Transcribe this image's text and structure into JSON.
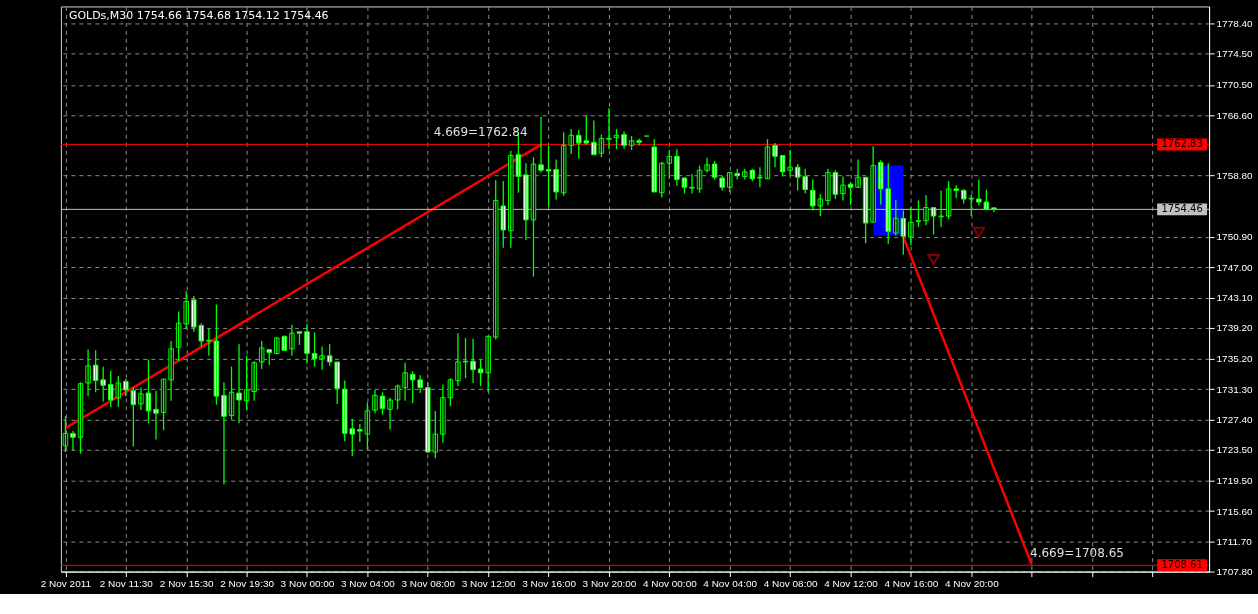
{
  "chart_data": {
    "type": "candlestick",
    "title": "GOLDs,M30  1754.66 1754.68 1754.12 1754.46",
    "color": "#00ff00",
    "categories": [
      "2 Nov 2011",
      null,
      null,
      null,
      null,
      null,
      null,
      null,
      "2 Nov 11:30",
      null,
      null,
      null,
      null,
      null,
      null,
      null,
      "2 Nov 15:30",
      null,
      null,
      null,
      null,
      null,
      null,
      null,
      "2 Nov 19:30",
      null,
      null,
      null,
      null,
      null,
      null,
      null,
      "3 Nov 00:00",
      null,
      null,
      null,
      null,
      null,
      null,
      null,
      "3 Nov 04:00",
      null,
      null,
      null,
      null,
      null,
      null,
      null,
      "3 Nov 08:00",
      null,
      null,
      null,
      null,
      null,
      null,
      null,
      "3 Nov 12:00",
      null,
      null,
      null,
      null,
      null,
      null,
      null,
      "3 Nov 16:00",
      null,
      null,
      null,
      null,
      null,
      null,
      null,
      "3 Nov 20:00",
      null,
      null,
      null,
      null,
      null,
      null,
      null,
      "4 Nov 00:00",
      null,
      null,
      null,
      null,
      null,
      null,
      null,
      "4 Nov 04:00",
      null,
      null,
      null,
      null,
      null,
      null,
      null,
      "4 Nov 08:00",
      null,
      null,
      null,
      null,
      null,
      null,
      null,
      "4 Nov 12:00",
      null,
      null,
      null,
      null,
      null,
      null,
      null,
      "4 Nov 16:00",
      null,
      null,
      null,
      null,
      null,
      null,
      null,
      "4 Nov 20:00",
      null,
      null,
      null,
      null,
      null,
      null,
      null,
      null,
      null,
      null,
      null,
      null,
      null,
      null,
      null,
      null,
      null,
      null,
      null,
      null,
      null,
      null,
      null,
      null,
      null,
      null,
      null,
      null,
      null,
      null,
      null
    ],
    "ohlc": [
      [
        1724.0,
        1727.8,
        1723.2,
        1725.6
      ],
      [
        1725.6,
        1725.9,
        1723.4,
        1725.1
      ],
      [
        1725.1,
        1732.2,
        1723.0,
        1732.0
      ],
      [
        1732.1,
        1736.4,
        1730.4,
        1734.3
      ],
      [
        1734.4,
        1736.3,
        1730.9,
        1732.4
      ],
      [
        1732.5,
        1734.2,
        1729.7,
        1731.8
      ],
      [
        1731.9,
        1733.7,
        1729.0,
        1729.9
      ],
      [
        1730.2,
        1733.0,
        1729.0,
        1732.1
      ],
      [
        1732.3,
        1732.6,
        1730.4,
        1731.2
      ],
      [
        1731.1,
        1731.5,
        1723.9,
        1729.3
      ],
      [
        1729.4,
        1731.5,
        1728.6,
        1730.7
      ],
      [
        1730.8,
        1735.1,
        1726.9,
        1728.5
      ],
      [
        1728.7,
        1731.1,
        1724.8,
        1728.2
      ],
      [
        1728.3,
        1732.6,
        1726.0,
        1732.6
      ],
      [
        1732.5,
        1737.5,
        1729.8,
        1736.5
      ],
      [
        1736.7,
        1741.3,
        1734.9,
        1739.8
      ],
      [
        1739.7,
        1743.9,
        1739.1,
        1742.6
      ],
      [
        1742.8,
        1743.3,
        1738.7,
        1739.3
      ],
      [
        1739.5,
        1739.8,
        1736.8,
        1737.5
      ],
      [
        1737.6,
        1739.1,
        1735.6,
        1737.5
      ],
      [
        1737.5,
        1742.2,
        1729.3,
        1730.4
      ],
      [
        1730.5,
        1732.2,
        1719.0,
        1727.8
      ],
      [
        1727.9,
        1734.2,
        1727.4,
        1730.9
      ],
      [
        1730.8,
        1737.1,
        1726.9,
        1729.9
      ],
      [
        1729.8,
        1735.6,
        1728.6,
        1731.2
      ],
      [
        1731.0,
        1734.9,
        1729.8,
        1734.7
      ],
      [
        1734.8,
        1737.5,
        1733.9,
        1736.6
      ],
      [
        1736.4,
        1736.4,
        1734.4,
        1736.0
      ],
      [
        1735.9,
        1738.0,
        1735.8,
        1737.9
      ],
      [
        1738.1,
        1738.2,
        1736.2,
        1736.3
      ],
      [
        1736.5,
        1739.6,
        1735.6,
        1738.5
      ],
      [
        1738.7,
        1738.7,
        1737.0,
        1738.5
      ],
      [
        1738.7,
        1739.7,
        1734.6,
        1735.9
      ],
      [
        1735.9,
        1738.6,
        1734.2,
        1735.2
      ],
      [
        1735.2,
        1736.8,
        1733.8,
        1735.6
      ],
      [
        1735.6,
        1737.1,
        1734.3,
        1734.8
      ],
      [
        1734.8,
        1734.8,
        1729.4,
        1731.4
      ],
      [
        1731.3,
        1732.4,
        1724.6,
        1725.6
      ],
      [
        1726.2,
        1727.5,
        1722.7,
        1725.5
      ],
      [
        1726.1,
        1726.8,
        1724.5,
        1725.9
      ],
      [
        1725.5,
        1729.6,
        1723.5,
        1728.5
      ],
      [
        1728.6,
        1731.2,
        1728.2,
        1730.5
      ],
      [
        1730.4,
        1730.9,
        1728.0,
        1728.8
      ],
      [
        1728.7,
        1730.2,
        1726.1,
        1729.9
      ],
      [
        1729.9,
        1731.9,
        1728.7,
        1731.7
      ],
      [
        1731.5,
        1734.7,
        1729.8,
        1733.4
      ],
      [
        1733.2,
        1733.6,
        1729.5,
        1732.5
      ],
      [
        1732.5,
        1733.1,
        1730.8,
        1731.5
      ],
      [
        1731.5,
        1732.2,
        1723.1,
        1723.2
      ],
      [
        1723.2,
        1728.5,
        1722.4,
        1725.5
      ],
      [
        1725.5,
        1731.9,
        1724.4,
        1730.2
      ],
      [
        1730.2,
        1732.7,
        1729.1,
        1732.5
      ],
      [
        1732.4,
        1738.5,
        1731.7,
        1734.8
      ],
      [
        1734.9,
        1737.9,
        1732.7,
        1734.8
      ],
      [
        1734.9,
        1737.8,
        1732.1,
        1733.8
      ],
      [
        1733.9,
        1735.1,
        1731.7,
        1733.4
      ],
      [
        1733.4,
        1738.2,
        1730.9,
        1738.1
      ],
      [
        1738.0,
        1758.2,
        1737.7,
        1755.6
      ],
      [
        1754.9,
        1758.1,
        1749.5,
        1751.8
      ],
      [
        1751.7,
        1762.0,
        1749.5,
        1761.4
      ],
      [
        1761.5,
        1764.2,
        1756.6,
        1758.7
      ],
      [
        1758.9,
        1760.4,
        1750.5,
        1753.1
      ],
      [
        1753.1,
        1761.2,
        1745.8,
        1760.3
      ],
      [
        1760.2,
        1766.4,
        1759.2,
        1759.5
      ],
      [
        1759.6,
        1762.6,
        1754.8,
        1759.4
      ],
      [
        1759.6,
        1760.9,
        1755.7,
        1756.7
      ],
      [
        1756.6,
        1764.4,
        1756.2,
        1762.7
      ],
      [
        1762.7,
        1764.8,
        1761.6,
        1764.0
      ],
      [
        1764.0,
        1764.7,
        1761.0,
        1763.0
      ],
      [
        1763.3,
        1766.6,
        1762.8,
        1763.0
      ],
      [
        1763.1,
        1765.9,
        1761.5,
        1761.5
      ],
      [
        1761.7,
        1764.1,
        1761.2,
        1763.6
      ],
      [
        1763.6,
        1767.5,
        1762.2,
        1763.5
      ],
      [
        1763.7,
        1764.8,
        1762.2,
        1764.0
      ],
      [
        1764.1,
        1764.5,
        1762.3,
        1762.7
      ],
      [
        1762.7,
        1763.9,
        1762.1,
        1763.3
      ],
      [
        1763.3,
        1763.6,
        1762.7,
        1763.1
      ],
      [
        1763.9,
        1763.9,
        1763.9,
        1763.9
      ],
      [
        1762.5,
        1763.5,
        1756.7,
        1756.7
      ],
      [
        1756.6,
        1760.6,
        1756.0,
        1760.4
      ],
      [
        1760.4,
        1762.1,
        1758.4,
        1761.3
      ],
      [
        1761.3,
        1762.2,
        1757.5,
        1758.3
      ],
      [
        1758.5,
        1758.6,
        1756.5,
        1757.3
      ],
      [
        1757.3,
        1759.0,
        1756.5,
        1757.2
      ],
      [
        1757.1,
        1760.1,
        1756.6,
        1759.5
      ],
      [
        1759.5,
        1761.1,
        1759.2,
        1760.2
      ],
      [
        1760.3,
        1760.7,
        1758.3,
        1758.6
      ],
      [
        1758.5,
        1758.8,
        1756.9,
        1757.3
      ],
      [
        1757.3,
        1759.2,
        1756.7,
        1759.2
      ],
      [
        1759.1,
        1759.7,
        1758.3,
        1758.8
      ],
      [
        1758.7,
        1759.7,
        1758.3,
        1759.3
      ],
      [
        1759.5,
        1759.7,
        1758.1,
        1758.4
      ],
      [
        1758.6,
        1759.9,
        1757.3,
        1758.5
      ],
      [
        1758.4,
        1763.5,
        1758.4,
        1762.5
      ],
      [
        1762.7,
        1763.0,
        1759.9,
        1761.3
      ],
      [
        1761.4,
        1761.4,
        1758.7,
        1759.3
      ],
      [
        1759.5,
        1762.1,
        1758.8,
        1759.9
      ],
      [
        1759.9,
        1760.3,
        1756.9,
        1758.6
      ],
      [
        1758.7,
        1759.7,
        1756.5,
        1757.0
      ],
      [
        1756.9,
        1758.3,
        1754.3,
        1754.9
      ],
      [
        1754.9,
        1756.4,
        1753.6,
        1755.8
      ],
      [
        1755.6,
        1759.7,
        1755.0,
        1759.2
      ],
      [
        1759.2,
        1759.5,
        1755.8,
        1756.4
      ],
      [
        1756.5,
        1758.7,
        1755.6,
        1757.6
      ],
      [
        1757.7,
        1758.0,
        1755.0,
        1757.3
      ],
      [
        1757.3,
        1760.9,
        1757.2,
        1758.6
      ],
      [
        1758.6,
        1758.6,
        1750.1,
        1752.7
      ],
      [
        1752.8,
        1762.6,
        1752.8,
        1760.1
      ],
      [
        1760.5,
        1760.8,
        1755.1,
        1757.1
      ],
      [
        1757.1,
        1760.4,
        1750.0,
        1751.6
      ],
      [
        1751.4,
        1755.7,
        1751.1,
        1753.3
      ],
      [
        1753.3,
        1754.3,
        1748.6,
        1751.0
      ],
      [
        1750.9,
        1754.8,
        1749.8,
        1752.8
      ],
      [
        1752.9,
        1755.6,
        1752.2,
        1753.0
      ],
      [
        1753.0,
        1756.3,
        1752.4,
        1754.7
      ],
      [
        1754.7,
        1754.7,
        1751.2,
        1753.6
      ],
      [
        1753.5,
        1756.9,
        1752.2,
        1753.6
      ],
      [
        1753.6,
        1758.1,
        1753.2,
        1757.1
      ],
      [
        1757.1,
        1757.6,
        1755.9,
        1756.9
      ],
      [
        1756.9,
        1757.1,
        1755.2,
        1755.8
      ],
      [
        1755.9,
        1756.3,
        1753.6,
        1755.8
      ],
      [
        1755.8,
        1758.3,
        1755.0,
        1755.4
      ],
      [
        1755.4,
        1757.0,
        1754.5,
        1754.5
      ],
      [
        1754.66,
        1754.68,
        1754.12,
        1754.46
      ],
      null,
      null,
      null,
      null,
      null,
      null,
      null,
      null,
      null,
      null,
      null,
      null,
      null,
      null,
      null,
      null,
      null,
      null,
      null,
      null,
      null,
      null,
      null,
      null,
      null,
      null,
      null,
      null
    ],
    "series": [
      {
        "type": "line",
        "color": "#0000ff",
        "values": [
          null,
          null,
          null,
          null,
          null,
          null,
          null,
          null,
          null,
          null,
          null,
          null,
          null,
          null,
          null,
          null,
          null,
          null,
          null,
          null,
          null,
          null,
          null,
          null,
          null,
          null,
          null,
          null,
          null,
          null,
          null,
          null,
          null,
          null,
          null,
          null,
          null,
          null,
          null,
          null,
          null,
          null,
          null,
          null,
          null,
          null,
          null,
          null,
          null,
          null,
          null,
          null,
          null,
          null,
          null,
          null,
          null,
          null,
          null,
          null,
          null,
          null,
          null,
          null,
          null,
          null,
          null,
          null,
          null,
          null,
          null,
          null,
          null,
          null,
          null,
          null,
          null,
          null,
          null,
          null,
          null,
          null,
          null,
          null,
          null,
          null,
          null,
          null,
          null,
          null,
          null,
          null,
          null,
          null,
          null,
          null,
          null,
          null,
          null,
          null,
          null,
          null,
          null,
          null,
          null,
          null,
          null,
          null,
          null,
          null,
          null,
          null,
          null,
          null,
          null,
          null,
          null,
          null,
          null,
          null,
          null,
          null,
          null,
          null,
          null,
          null,
          null,
          null,
          null,
          null,
          null,
          null,
          null,
          null,
          null,
          null,
          null,
          null,
          null,
          null,
          null,
          null,
          null,
          null,
          null,
          null,
          null,
          null,
          null,
          null,
          null,
          null
        ],
        "upper": [
          null,
          null,
          null,
          null,
          null,
          null,
          null,
          null,
          null,
          null,
          null,
          null,
          null,
          null,
          null,
          null,
          null,
          null,
          null,
          null,
          null,
          null,
          null,
          null,
          null,
          null,
          null,
          null,
          null,
          null,
          null,
          null,
          null,
          null,
          null,
          null,
          null,
          null,
          null,
          null,
          null,
          null,
          null,
          null,
          null,
          null,
          null,
          null,
          null,
          null,
          null,
          null,
          null,
          null,
          null,
          null,
          null,
          null,
          null,
          null,
          null,
          null,
          null,
          null,
          null,
          null,
          null,
          null,
          null,
          null,
          null,
          null,
          null,
          null,
          null,
          null,
          null,
          null,
          null,
          null,
          null,
          null,
          null,
          null,
          null,
          null,
          null,
          null,
          null,
          null,
          null,
          null,
          null,
          null,
          null,
          null,
          null,
          null,
          null,
          null,
          null,
          null,
          null,
          null,
          null,
          null,
          null,
          1760.1,
          1760.1,
          1760.1,
          1760.1,
          1760.1,
          null,
          null,
          null,
          null,
          null,
          null,
          null,
          null,
          null,
          null,
          null,
          null,
          null,
          null,
          null,
          null,
          null,
          null,
          null,
          null,
          null,
          null,
          null,
          null,
          null,
          null,
          null,
          null,
          null,
          null,
          null,
          null,
          null,
          null,
          null,
          null,
          null,
          null,
          null,
          null
        ],
        "lower": [
          null,
          null,
          null,
          null,
          null,
          null,
          null,
          null,
          null,
          null,
          null,
          null,
          null,
          null,
          null,
          null,
          null,
          null,
          null,
          null,
          null,
          null,
          null,
          null,
          null,
          null,
          null,
          null,
          null,
          null,
          null,
          null,
          null,
          null,
          null,
          null,
          null,
          null,
          null,
          null,
          null,
          null,
          null,
          null,
          null,
          null,
          null,
          null,
          null,
          null,
          null,
          null,
          null,
          null,
          null,
          null,
          null,
          null,
          null,
          null,
          null,
          null,
          null,
          null,
          null,
          null,
          null,
          null,
          null,
          null,
          null,
          null,
          null,
          null,
          null,
          null,
          null,
          null,
          null,
          null,
          null,
          null,
          null,
          null,
          null,
          null,
          null,
          null,
          null,
          null,
          null,
          null,
          null,
          null,
          null,
          null,
          null,
          null,
          null,
          null,
          null,
          null,
          null,
          null,
          null,
          null,
          null,
          1751.1,
          1751.1,
          1751.1,
          1751.1,
          1751.1,
          null,
          null,
          null,
          null,
          null,
          null,
          null,
          null,
          null,
          null,
          null,
          null,
          null,
          null,
          null,
          null,
          null,
          null,
          null,
          null,
          null,
          null,
          null,
          null,
          null,
          null,
          null,
          null,
          null,
          null,
          null,
          null,
          null,
          null,
          null,
          null,
          null,
          null,
          null,
          null
        ]
      },
      {
        "type": "line",
        "color": "#ff0000",
        "values": [
          1726.3,
          null,
          null,
          null,
          null,
          null,
          null,
          null,
          null,
          null,
          null,
          null,
          null,
          null,
          null,
          null,
          null,
          null,
          null,
          null,
          null,
          null,
          null,
          null,
          null,
          null,
          null,
          null,
          null,
          null,
          null,
          null,
          null,
          null,
          null,
          null,
          null,
          null,
          null,
          null,
          null,
          null,
          null,
          null,
          null,
          null,
          null,
          null,
          null,
          null,
          null,
          null,
          null,
          null,
          null,
          null,
          null,
          null,
          null,
          null,
          null,
          null,
          null,
          1762.8,
          null,
          null,
          null,
          null,
          null,
          null,
          null,
          null,
          null,
          null,
          null,
          null,
          null,
          null,
          null,
          null,
          null,
          null,
          null,
          null,
          null,
          null,
          null,
          null,
          null,
          null,
          null,
          null,
          null,
          null,
          null,
          null,
          null,
          null,
          null,
          null,
          null,
          null,
          null,
          null,
          null,
          null,
          null,
          null,
          null,
          null,
          null,
          null,
          null,
          null,
          null,
          null,
          null,
          null,
          null,
          null,
          null,
          null,
          null,
          null,
          null,
          null,
          null,
          null,
          null,
          null,
          null,
          null,
          null,
          null,
          null,
          null,
          null,
          null,
          null,
          null,
          null,
          null,
          null,
          null,
          null,
          null,
          null,
          null,
          null,
          null,
          null,
          null
        ]
      },
      {
        "type": "line",
        "color": "#ff0000",
        "values": [
          null,
          null,
          null,
          null,
          null,
          null,
          null,
          null,
          null,
          null,
          null,
          null,
          null,
          null,
          null,
          null,
          null,
          null,
          null,
          null,
          null,
          null,
          null,
          null,
          null,
          null,
          null,
          null,
          null,
          null,
          null,
          null,
          null,
          null,
          null,
          null,
          null,
          null,
          null,
          null,
          null,
          null,
          null,
          null,
          null,
          null,
          null,
          null,
          null,
          null,
          null,
          null,
          null,
          null,
          null,
          null,
          null,
          null,
          null,
          null,
          null,
          null,
          null,
          null,
          null,
          null,
          null,
          null,
          null,
          null,
          null,
          null,
          null,
          null,
          null,
          null,
          null,
          null,
          null,
          null,
          null,
          null,
          null,
          null,
          null,
          null,
          null,
          null,
          null,
          null,
          null,
          null,
          null,
          null,
          null,
          null,
          null,
          null,
          null,
          null,
          null,
          null,
          null,
          null,
          null,
          null,
          null,
          null,
          null,
          null,
          null,
          1750.9,
          null,
          null,
          null,
          null,
          null,
          null,
          null,
          null,
          null,
          null,
          null,
          null,
          null,
          null,
          null,
          null,
          1708.7,
          null,
          null,
          null,
          null,
          null,
          null,
          null,
          null,
          null,
          null,
          null,
          null,
          null,
          null,
          null,
          null,
          null,
          null,
          null,
          null,
          null,
          null,
          null
        ]
      },
      {
        "type": "scatter",
        "color": "#c00000",
        "marker": "triangle",
        "values": [
          null,
          null,
          null,
          null,
          null,
          null,
          null,
          null,
          null,
          null,
          null,
          null,
          null,
          null,
          null,
          null,
          null,
          null,
          null,
          null,
          null,
          null,
          null,
          null,
          null,
          null,
          null,
          null,
          null,
          null,
          null,
          null,
          null,
          null,
          null,
          null,
          null,
          null,
          null,
          null,
          null,
          null,
          null,
          null,
          null,
          null,
          null,
          null,
          null,
          null,
          null,
          null,
          null,
          null,
          null,
          null,
          null,
          null,
          null,
          null,
          null,
          null,
          null,
          null,
          null,
          null,
          null,
          null,
          null,
          null,
          null,
          null,
          null,
          null,
          null,
          null,
          null,
          null,
          null,
          null,
          null,
          null,
          null,
          null,
          null,
          null,
          null,
          null,
          null,
          null,
          null,
          null,
          null,
          null,
          null,
          null,
          null,
          null,
          null,
          null,
          null,
          null,
          null,
          null,
          null,
          null,
          null,
          null,
          null,
          null,
          null,
          null,
          null,
          null,
          null,
          1748.0,
          null,
          null,
          null,
          null,
          null,
          1751.5,
          null,
          null,
          null,
          null,
          null,
          null,
          null,
          null,
          null,
          null,
          null,
          null,
          null,
          null,
          null,
          null,
          null,
          null,
          null,
          null,
          null,
          null,
          null,
          null,
          null,
          null,
          null,
          null,
          null,
          null
        ]
      }
    ],
    "ylim": [
      1707.8,
      1780.6
    ],
    "yticks": [
      {
        "value": 1778.4,
        "label": "1778.40"
      },
      {
        "value": 1774.5,
        "label": "1774.50"
      },
      {
        "value": 1770.5,
        "label": "1770.50"
      },
      {
        "value": 1766.6,
        "label": "1766.60"
      },
      {
        "value": 1758.8,
        "label": "1758.80"
      },
      {
        "value": 1750.9,
        "label": "1750.90"
      },
      {
        "value": 1747.0,
        "label": "1747.00"
      },
      {
        "value": 1743.1,
        "label": "1743.10"
      },
      {
        "value": 1739.2,
        "label": "1739.20"
      },
      {
        "value": 1735.2,
        "label": "1735.20"
      },
      {
        "value": 1731.3,
        "label": "1731.30"
      },
      {
        "value": 1727.4,
        "label": "1727.40"
      },
      {
        "value": 1723.5,
        "label": "1723.50"
      },
      {
        "value": 1719.5,
        "label": "1719.50"
      },
      {
        "value": 1715.6,
        "label": "1715.60"
      },
      {
        "value": 1711.7,
        "label": "1711.70"
      },
      {
        "value": 1707.8,
        "label": "1707.80"
      }
    ],
    "ref_lines": [
      {
        "axis": "y",
        "value": 1762.83,
        "label": "1762.83",
        "color": "#ff0000"
      },
      {
        "axis": "y",
        "value": 1754.46,
        "label": "1754.46",
        "color": "#c0c0c0"
      },
      {
        "axis": "y",
        "value": 1708.61,
        "label": "1708.61",
        "color": "#ff0000"
      }
    ],
    "annotations": [
      {
        "text": "4.669=1762.84",
        "y": 1762.84
      },
      {
        "text": "4.669=1708.65",
        "y": 1708.65
      }
    ],
    "grid": true
  }
}
